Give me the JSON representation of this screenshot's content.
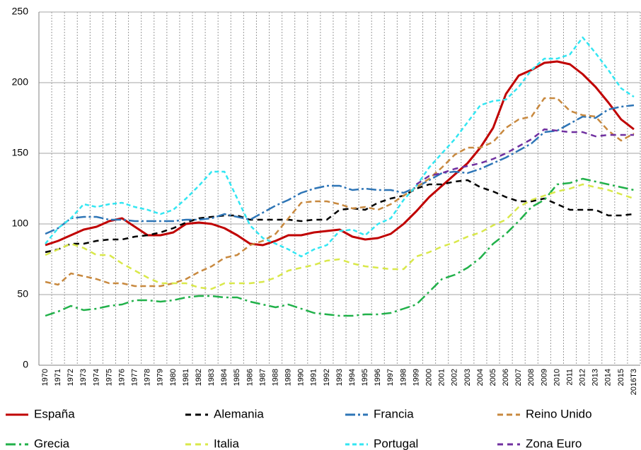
{
  "chart_data": {
    "type": "line",
    "categories": [
      "1970",
      "1971",
      "1972",
      "1973",
      "1974",
      "1975",
      "1976",
      "1977",
      "1978",
      "1979",
      "1980",
      "1981",
      "1982",
      "1983",
      "1984",
      "1985",
      "1986",
      "1987",
      "1988",
      "1989",
      "1990",
      "1991",
      "1992",
      "1993",
      "1994",
      "1995",
      "1996",
      "1997",
      "1998",
      "1999",
      "2000",
      "2001",
      "2002",
      "2003",
      "2004",
      "2005",
      "2006",
      "2007",
      "2008",
      "2009",
      "2010",
      "2011",
      "2012",
      "2013",
      "2014",
      "2015",
      "2016T3"
    ],
    "ylim": [
      0,
      250
    ],
    "yticks": [
      0,
      50,
      100,
      150,
      200,
      250
    ],
    "grid": true,
    "series": [
      {
        "name": "España",
        "color": "#c00000",
        "values": [
          85,
          88,
          92,
          96,
          98,
          102,
          104,
          98,
          92,
          92,
          94,
          100,
          101,
          100,
          97,
          92,
          86,
          85,
          88,
          92,
          92,
          94,
          95,
          96,
          91,
          89,
          90,
          93,
          100,
          109,
          119,
          127,
          135,
          143,
          154,
          168,
          192,
          205,
          209,
          214,
          215,
          213,
          206,
          197,
          186,
          174,
          167
        ]
      },
      {
        "name": "Alemania",
        "color": "#000000",
        "values": [
          80,
          82,
          86,
          86,
          88,
          89,
          89,
          91,
          92,
          94,
          97,
          101,
          104,
          105,
          106,
          106,
          103,
          103,
          103,
          103,
          102,
          103,
          103,
          110,
          111,
          110,
          115,
          118,
          120,
          125,
          128,
          128,
          130,
          131,
          126,
          123,
          119,
          116,
          116,
          118,
          114,
          110,
          110,
          110,
          106,
          106,
          107
        ]
      },
      {
        "name": "Francia",
        "color": "#2e75b6",
        "values": [
          93,
          97,
          104,
          105,
          105,
          103,
          103,
          102,
          102,
          102,
          102,
          103,
          103,
          104,
          107,
          105,
          103,
          108,
          113,
          117,
          122,
          125,
          127,
          127,
          124,
          125,
          124,
          124,
          122,
          126,
          131,
          136,
          137,
          136,
          139,
          143,
          147,
          152,
          157,
          165,
          166,
          171,
          176,
          175,
          181,
          183,
          184
        ]
      },
      {
        "name": "Reino Unido",
        "color": "#c8893f",
        "values": [
          59,
          57,
          65,
          63,
          61,
          58,
          58,
          56,
          56,
          56,
          58,
          61,
          66,
          70,
          76,
          78,
          85,
          88,
          93,
          104,
          115,
          116,
          116,
          114,
          111,
          112,
          110,
          114,
          120,
          126,
          132,
          140,
          149,
          154,
          154,
          158,
          168,
          174,
          176,
          189,
          189,
          180,
          177,
          176,
          166,
          159,
          164
        ]
      },
      {
        "name": "Grecia",
        "color": "#21b14a",
        "values": [
          35,
          38,
          42,
          39,
          40,
          42,
          43,
          46,
          46,
          45,
          46,
          48,
          49,
          49,
          48,
          48,
          45,
          43,
          41,
          43,
          40,
          37,
          36,
          35,
          35,
          36,
          36,
          37,
          40,
          43,
          52,
          61,
          64,
          69,
          76,
          86,
          93,
          102,
          112,
          117,
          128,
          129,
          132,
          130,
          128,
          126,
          124
        ]
      },
      {
        "name": "Italia",
        "color": "#d9e84a",
        "values": [
          78,
          82,
          86,
          83,
          78,
          78,
          72,
          67,
          62,
          58,
          58,
          58,
          55,
          54,
          58,
          58,
          58,
          59,
          62,
          67,
          69,
          71,
          74,
          75,
          72,
          70,
          69,
          68,
          68,
          77,
          80,
          84,
          87,
          91,
          94,
          99,
          103,
          112,
          117,
          120,
          123,
          125,
          128,
          126,
          124,
          121,
          118
        ]
      },
      {
        "name": "Portugal",
        "color": "#33e6f2",
        "values": [
          86,
          97,
          104,
          114,
          112,
          114,
          115,
          112,
          110,
          107,
          110,
          118,
          127,
          137,
          137,
          118,
          99,
          90,
          86,
          82,
          77,
          82,
          85,
          95,
          96,
          92,
          100,
          104,
          117,
          127,
          140,
          150,
          160,
          172,
          184,
          187,
          188,
          197,
          209,
          217,
          217,
          220,
          232,
          221,
          209,
          196,
          190
        ]
      },
      {
        "name": "Zona Euro",
        "color": "#7030a0",
        "values": [
          null,
          null,
          null,
          null,
          null,
          null,
          null,
          null,
          null,
          null,
          null,
          null,
          null,
          null,
          null,
          null,
          null,
          null,
          null,
          null,
          null,
          null,
          null,
          null,
          null,
          null,
          null,
          null,
          null,
          128,
          134,
          136,
          139,
          141,
          143,
          146,
          150,
          155,
          160,
          167,
          166,
          165,
          165,
          162,
          163,
          163,
          163
        ]
      }
    ]
  }
}
